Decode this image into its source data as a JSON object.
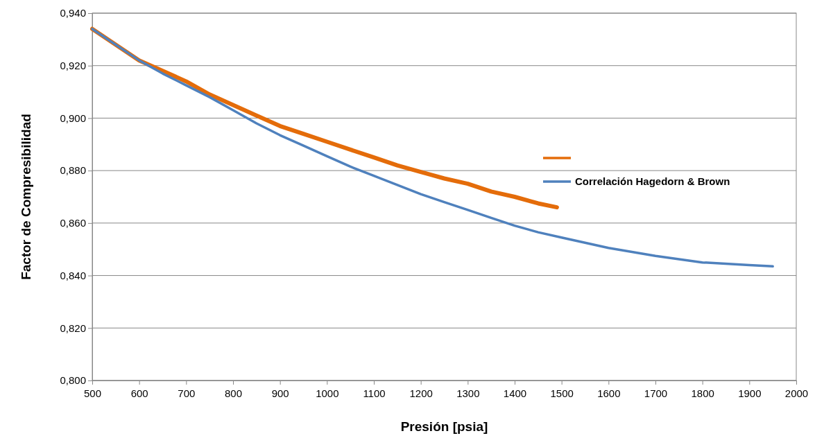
{
  "chart_data": {
    "type": "line",
    "xlabel": "Presión [psia]",
    "ylabel": "Factor de Compresibilidad",
    "xlim": [
      500,
      2000
    ],
    "xticks": [
      500,
      600,
      700,
      800,
      900,
      1000,
      1100,
      1200,
      1300,
      1400,
      1500,
      1600,
      1700,
      1800,
      1900,
      2000
    ],
    "ylim": [
      0.8,
      0.94
    ],
    "yticks": [
      {
        "value": 0.8,
        "label": "0,800"
      },
      {
        "value": 0.82,
        "label": "0,820"
      },
      {
        "value": 0.84,
        "label": "0,840"
      },
      {
        "value": 0.86,
        "label": "0,860"
      },
      {
        "value": 0.88,
        "label": "0,880"
      },
      {
        "value": 0.9,
        "label": "0,900"
      },
      {
        "value": 0.92,
        "label": "0,920"
      },
      {
        "value": 0.94,
        "label": "0,940"
      }
    ],
    "grid": "y",
    "legend": "right",
    "marker": "none",
    "line_style": "solid",
    "series": [
      {
        "color": "#e46c0a",
        "x": [
          500,
          550,
          600,
          650,
          700,
          750,
          800,
          850,
          900,
          950,
          1000,
          1050,
          1100,
          1150,
          1200,
          1250,
          1300,
          1350,
          1400,
          1450,
          1490
        ],
        "values": [
          0.934,
          0.928,
          0.922,
          0.918,
          0.914,
          0.909,
          0.905,
          0.901,
          0.897,
          0.894,
          0.891,
          0.888,
          0.885,
          0.882,
          0.8795,
          0.877,
          0.875,
          0.872,
          0.87,
          0.8675,
          0.866
        ]
      },
      {
        "name": "Correlación Hagedorn & Brown",
        "color": "#4f81bd",
        "x": [
          500,
          550,
          600,
          650,
          700,
          750,
          800,
          850,
          900,
          950,
          1000,
          1050,
          1100,
          1150,
          1200,
          1250,
          1300,
          1350,
          1400,
          1450,
          1500,
          1600,
          1700,
          1800,
          1900,
          1950
        ],
        "values": [
          0.934,
          0.928,
          0.922,
          0.917,
          0.9125,
          0.908,
          0.903,
          0.898,
          0.8935,
          0.8895,
          0.8855,
          0.8815,
          0.878,
          0.8745,
          0.871,
          0.868,
          0.865,
          0.862,
          0.859,
          0.8565,
          0.8545,
          0.8505,
          0.8475,
          0.845,
          0.844,
          0.8435
        ]
      }
    ]
  }
}
